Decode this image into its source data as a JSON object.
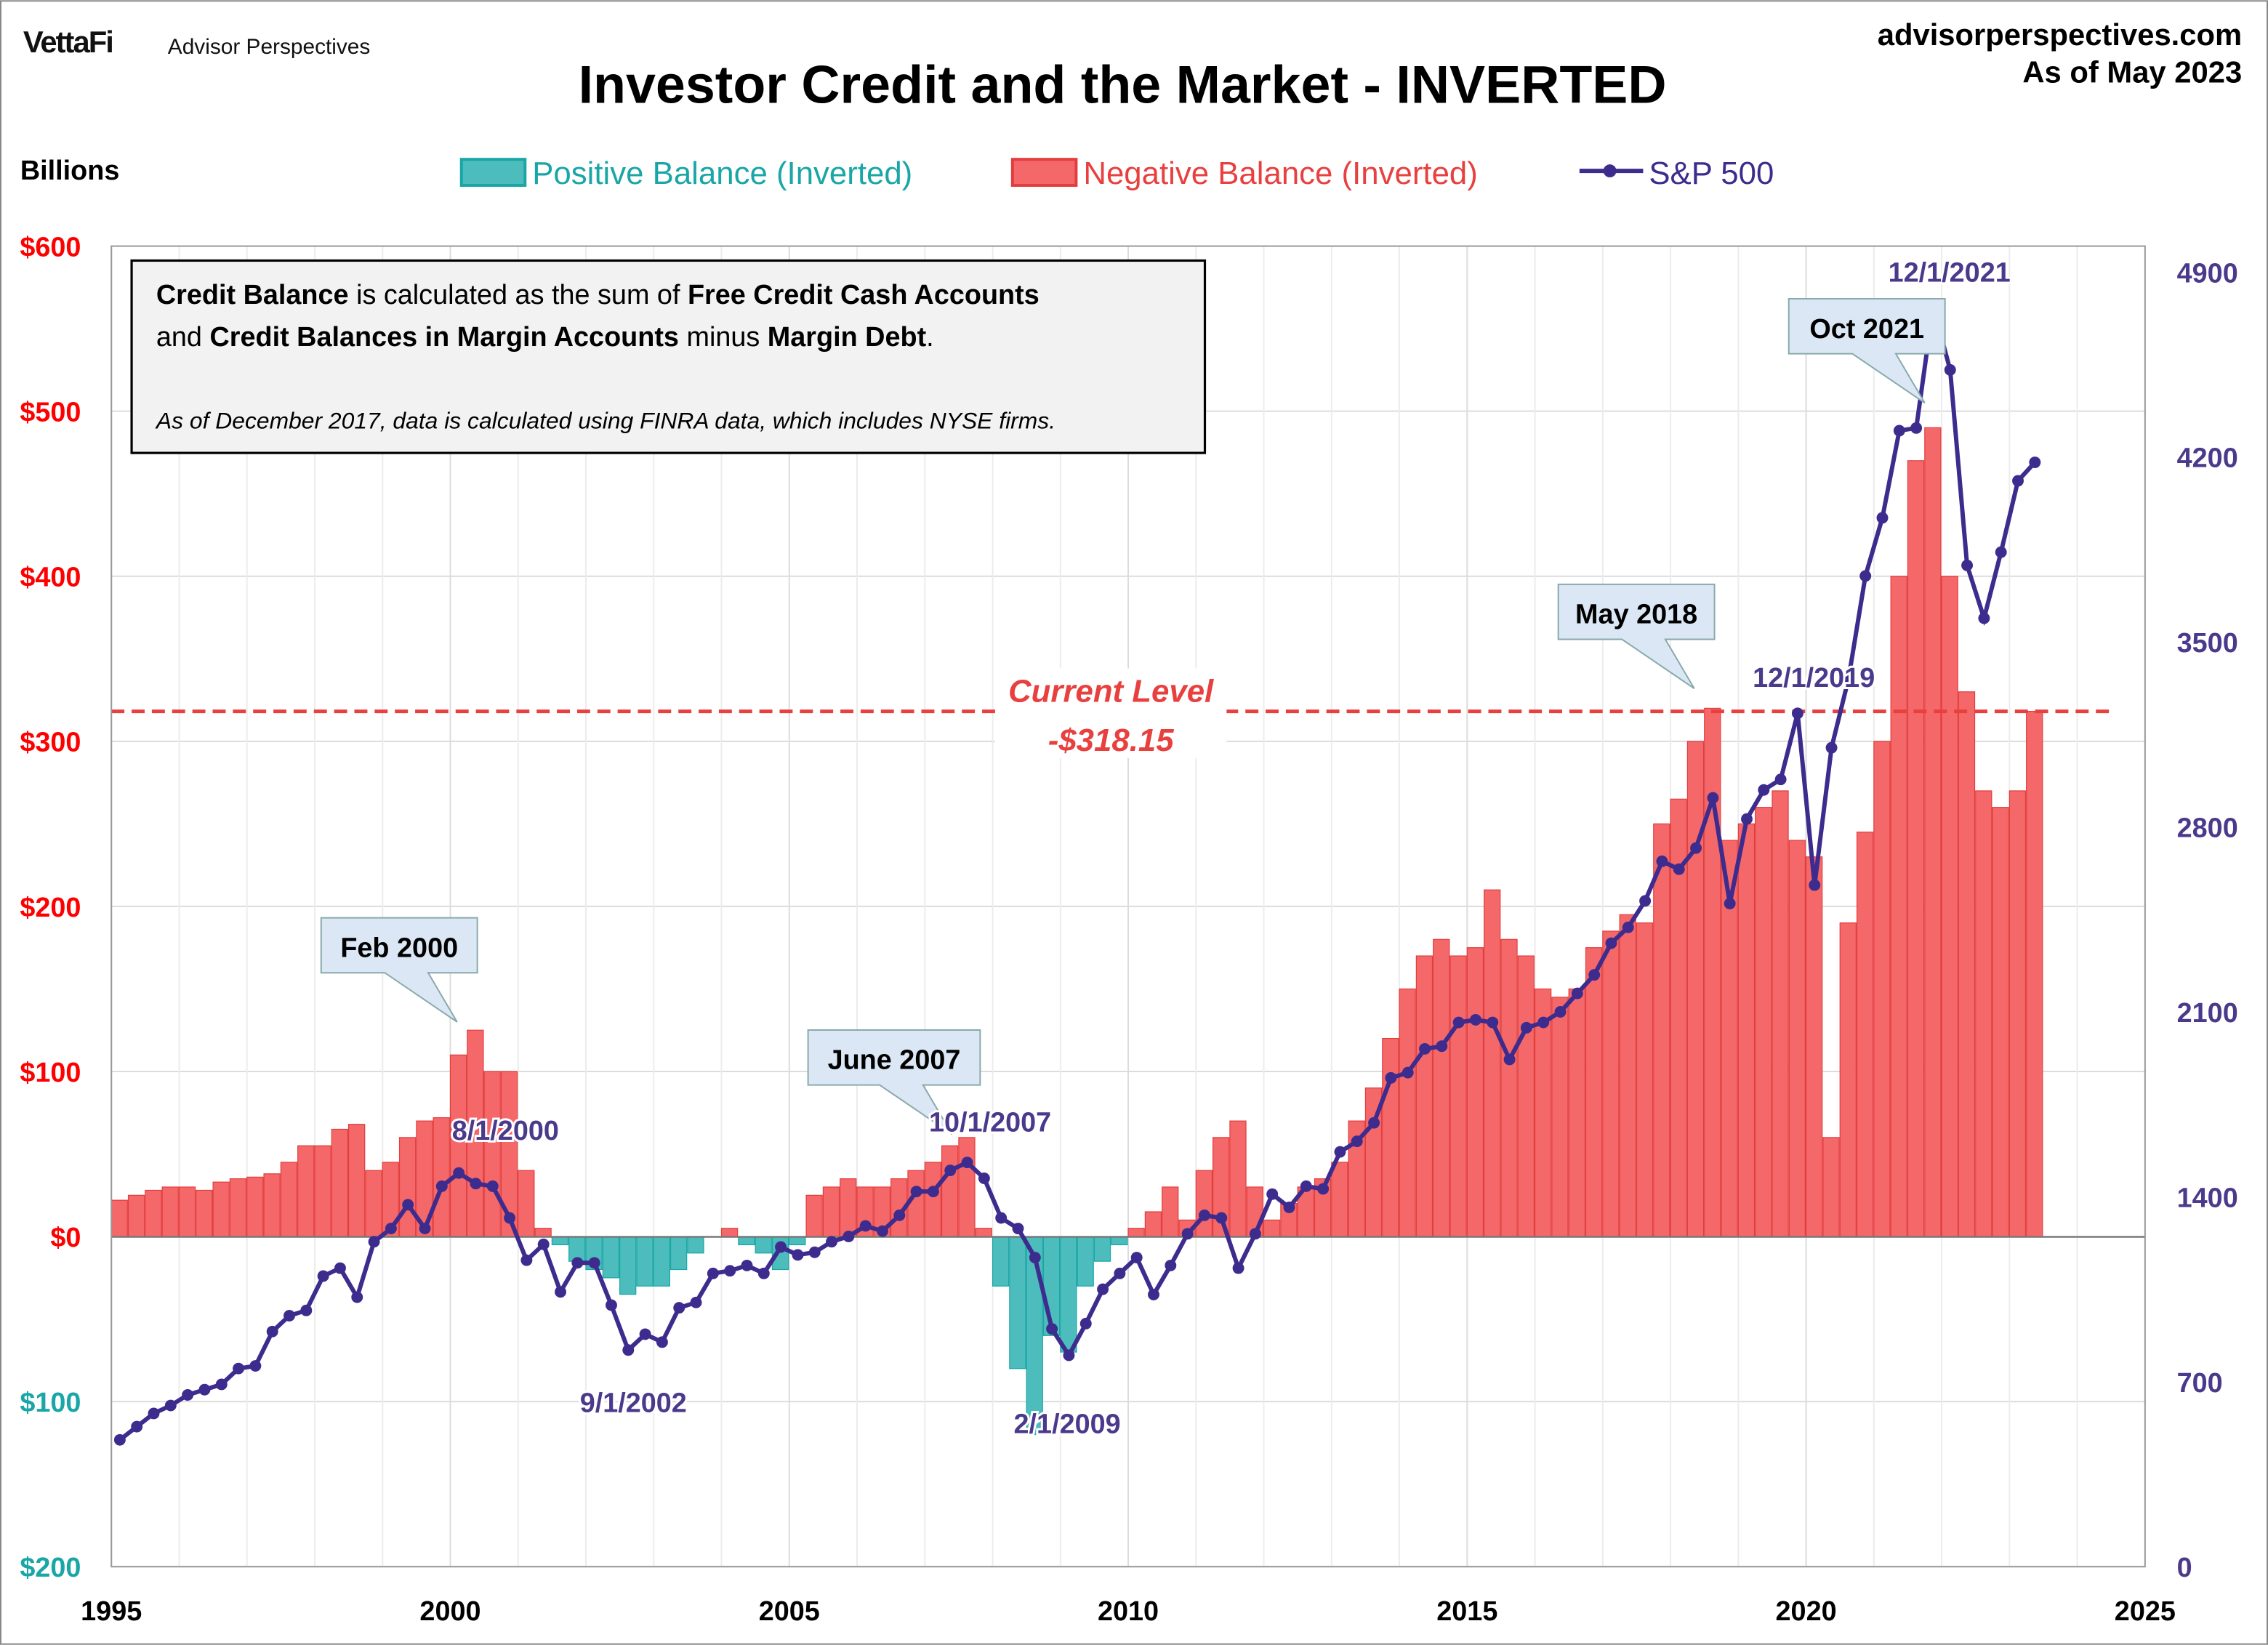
{
  "header": {
    "logo_brand": "VettaFi",
    "logo_sub": "Advisor Perspectives",
    "title": "Investor Credit and the Market - INVERTED",
    "site": "advisorperspectives.com",
    "as_of": "As of May 2023",
    "left_unit": "Billions"
  },
  "legend": {
    "positive": "Positive Balance (Inverted)",
    "negative": "Negative Balance (Inverted)",
    "sp500": "S&P 500"
  },
  "note": {
    "line1_parts": [
      "Credit Balance",
      " is calculated as the sum of ",
      "Free Credit Cash Accounts"
    ],
    "line2_parts": [
      "and ",
      "Credit Balances in Margin Accounts",
      " minus ",
      "Margin Debt",
      "."
    ],
    "line3": "As of December 2017, data is calculated using FINRA data, which includes NYSE firms."
  },
  "colors": {
    "positive": "#4dbcbc",
    "negative": "#f4686a",
    "negative_edge": "#e33d3d",
    "sp500": "#3d2c8d",
    "left_axis_red": "#ff0000",
    "left_axis_teal": "#1aa6a6",
    "current_level": "#e8403f"
  },
  "chart_data": {
    "type": "bar+line",
    "xlim": [
      1995,
      2025
    ],
    "x_ticks": [
      "1995",
      "2000",
      "2005",
      "2010",
      "2015",
      "2020",
      "2025"
    ],
    "left_axis": {
      "range": [
        -200,
        600
      ],
      "ticks": [
        {
          "v": 600,
          "label": "$600"
        },
        {
          "v": 500,
          "label": "$500"
        },
        {
          "v": 400,
          "label": "$400"
        },
        {
          "v": 300,
          "label": "$300"
        },
        {
          "v": 200,
          "label": "$200"
        },
        {
          "v": 100,
          "label": "$100"
        },
        {
          "v": 0,
          "label": "$0"
        },
        {
          "v": -100,
          "label": "$100"
        },
        {
          "v": -200,
          "label": "$200"
        }
      ]
    },
    "right_axis": {
      "range": [
        0,
        4900
      ],
      "ticks": [
        "0",
        "700",
        "1400",
        "2100",
        "2800",
        "3500",
        "4200",
        "4900"
      ]
    },
    "grid": true,
    "frequency": "quarterly (approx.)",
    "start": "1995 Q1",
    "credit_balance_inverted": [
      22,
      25,
      28,
      30,
      30,
      28,
      33,
      35,
      36,
      38,
      45,
      55,
      55,
      65,
      68,
      40,
      45,
      60,
      70,
      72,
      110,
      125,
      100,
      100,
      40,
      5,
      -5,
      -15,
      -20,
      -25,
      -35,
      -30,
      -30,
      -20,
      -10,
      0,
      5,
      -5,
      -10,
      -20,
      -5,
      25,
      30,
      35,
      30,
      30,
      35,
      40,
      45,
      55,
      60,
      5,
      -30,
      -80,
      -120,
      -60,
      -70,
      -30,
      -15,
      -5,
      5,
      15,
      30,
      10,
      40,
      60,
      70,
      30,
      10,
      20,
      30,
      35,
      45,
      70,
      90,
      120,
      150,
      170,
      180,
      170,
      175,
      210,
      180,
      170,
      150,
      145,
      150,
      175,
      185,
      195,
      190,
      250,
      265,
      300,
      320,
      240,
      250,
      260,
      270,
      240,
      230,
      60,
      190,
      245,
      300,
      400,
      470,
      490,
      400,
      330,
      270,
      260,
      270,
      318.15
    ],
    "sp500": [
      480,
      530,
      580,
      610,
      650,
      670,
      690,
      750,
      760,
      890,
      950,
      970,
      1100,
      1130,
      1020,
      1230,
      1280,
      1370,
      1280,
      1440,
      1490,
      1450,
      1440,
      1320,
      1160,
      1220,
      1040,
      1150,
      1150,
      990,
      820,
      880,
      850,
      980,
      1000,
      1110,
      1120,
      1140,
      1110,
      1210,
      1180,
      1190,
      1230,
      1250,
      1290,
      1270,
      1330,
      1420,
      1420,
      1500,
      1530,
      1470,
      1320,
      1280,
      1170,
      900,
      800,
      920,
      1050,
      1110,
      1170,
      1030,
      1140,
      1260,
      1330,
      1320,
      1130,
      1260,
      1410,
      1360,
      1440,
      1430,
      1570,
      1610,
      1680,
      1850,
      1870,
      1960,
      1970,
      2060,
      2070,
      2060,
      1920,
      2040,
      2060,
      2100,
      2170,
      2240,
      2360,
      2420,
      2520,
      2670,
      2640,
      2720,
      2910,
      2510,
      2830,
      2940,
      2980,
      3230,
      2580,
      3100,
      3360,
      3750,
      3970,
      4300,
      4310,
      4770,
      4530,
      3790,
      3590,
      3840,
      4110,
      4180
    ],
    "current_level": {
      "value": 318.15,
      "label1": "Current Level",
      "label2": "-$318.15"
    },
    "callouts": [
      {
        "label": "Feb 2000",
        "x": 2000.1,
        "y": 130
      },
      {
        "label": "June 2007",
        "x": 2007.4,
        "y": 62
      },
      {
        "label": "May 2018",
        "x": 2018.35,
        "y": 332
      },
      {
        "label": "Oct 2021",
        "x": 2021.75,
        "y": 505
      }
    ],
    "date_labels": [
      {
        "label": "8/1/2000",
        "x": 2000.6,
        "sp": 1517
      },
      {
        "label": "9/1/2002",
        "x": 2002.7,
        "sp": 815
      },
      {
        "label": "10/1/2007",
        "x": 2007.75,
        "sp": 1549
      },
      {
        "label": "2/1/2009",
        "x": 2009.1,
        "sp": 735
      },
      {
        "label": "12/1/2019",
        "x": 2019.9,
        "sp": 3231
      },
      {
        "label": "12/1/2021",
        "x": 2021.9,
        "sp": 4766
      }
    ]
  }
}
